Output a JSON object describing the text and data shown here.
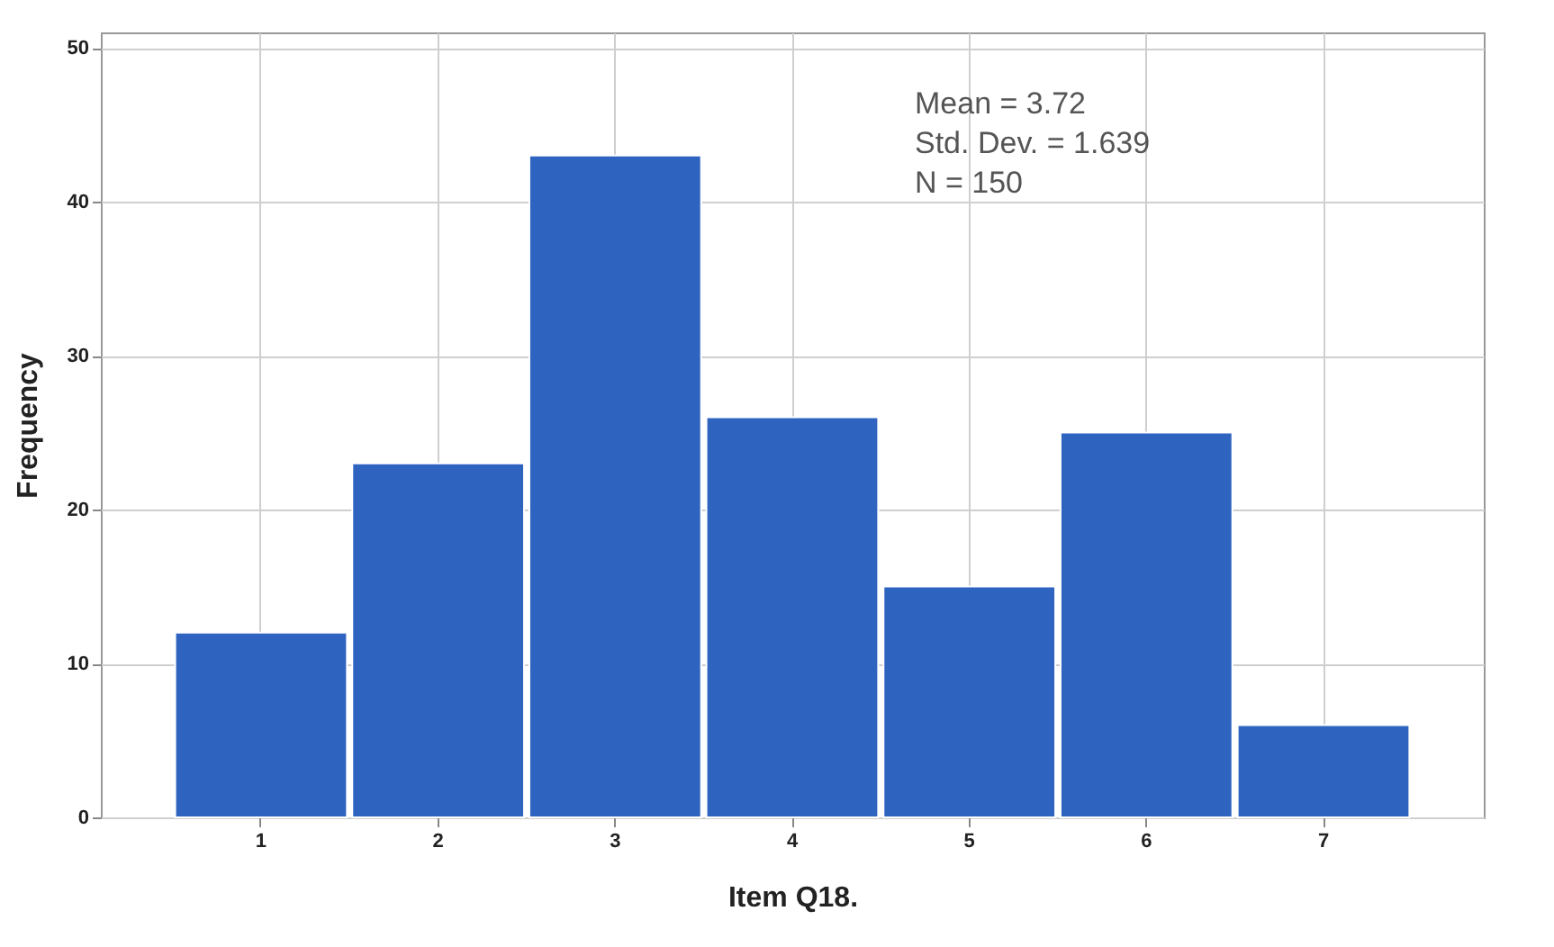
{
  "chart_data": {
    "type": "bar",
    "xlabel": "Item Q18.",
    "ylabel": "Frequency",
    "categories": [
      "1",
      "2",
      "3",
      "4",
      "5",
      "6",
      "7"
    ],
    "values": [
      12,
      23,
      43,
      26,
      15,
      25,
      6
    ],
    "color": "#2f63c0",
    "ylim": [
      0,
      51
    ],
    "yticks": [
      0,
      10,
      20,
      30,
      40,
      50
    ],
    "grid": true,
    "annotations": [
      "Mean = 3.72",
      "Std. Dev. = 1.639",
      "N = 150"
    ]
  }
}
